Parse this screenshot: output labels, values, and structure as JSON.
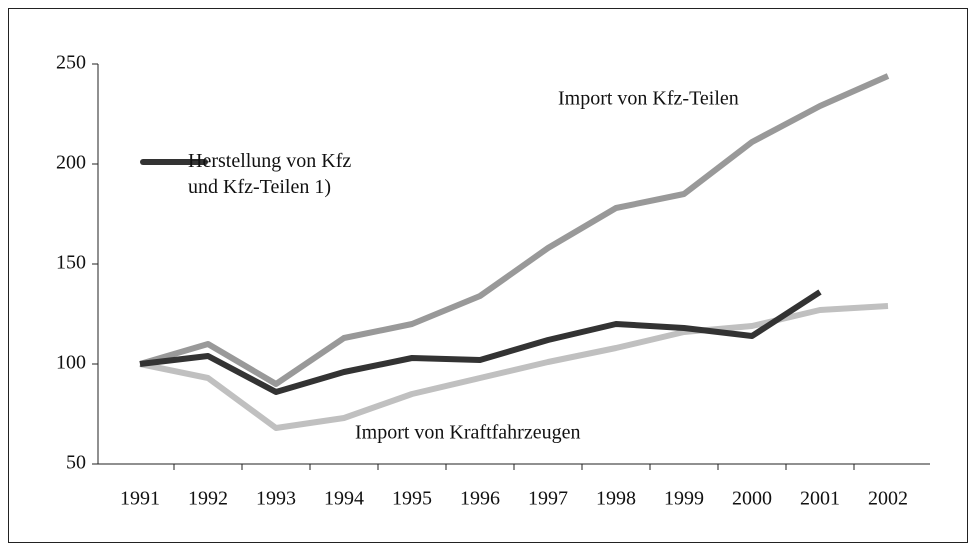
{
  "chart_data": {
    "type": "line",
    "categories": [
      "1991",
      "1992",
      "1993",
      "1994",
      "1995",
      "1996",
      "1997",
      "1998",
      "1999",
      "2000",
      "2001",
      "2002"
    ],
    "series": [
      {
        "name": "Import von Kfz-Teilen",
        "color": "#999999",
        "values": [
          100,
          110,
          90,
          113,
          120,
          134,
          158,
          178,
          185,
          211,
          229,
          244
        ]
      },
      {
        "name": "Import von Kraftfahrzeugen",
        "color": "#c0c0c0",
        "values": [
          100,
          93,
          68,
          73,
          85,
          93,
          101,
          108,
          116,
          119,
          127,
          129
        ]
      },
      {
        "name": "Herstellung von Kfz und Kfz-Teilen 1)",
        "color": "#333333",
        "values": [
          100,
          104,
          86,
          96,
          103,
          102,
          112,
          120,
          118,
          114,
          136,
          null
        ]
      }
    ],
    "ylim": [
      50,
      250
    ],
    "yticks": [
      50,
      100,
      150,
      200,
      250
    ],
    "grid": false
  }
}
